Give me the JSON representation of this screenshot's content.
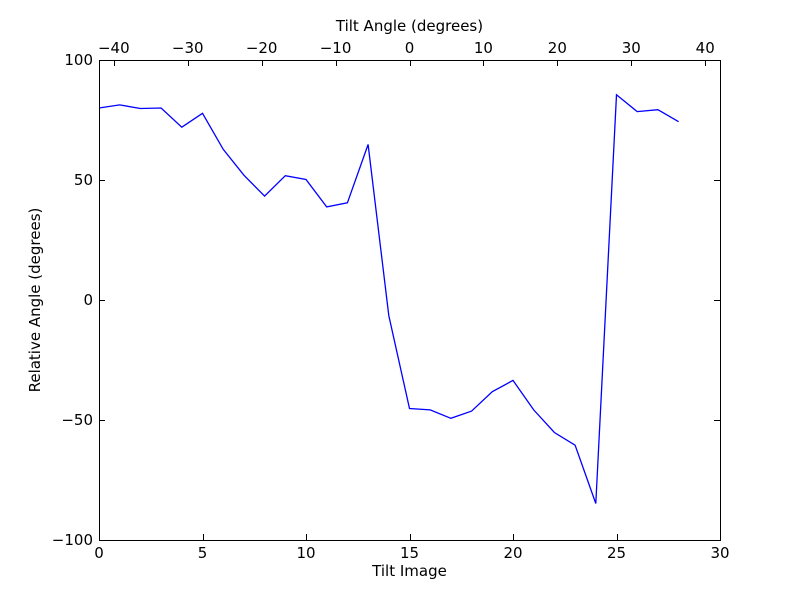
{
  "chart_data": {
    "type": "line",
    "title": "",
    "xlabel": "Tilt Image",
    "ylabel": "Relative Angle (degrees)",
    "top_xlabel": "Tilt Angle (degrees)",
    "xlim": [
      0,
      30
    ],
    "ylim": [
      -100,
      100
    ],
    "top_xlim": [
      -42,
      42
    ],
    "x_ticks": [
      {
        "value": 0,
        "label": "0"
      },
      {
        "value": 5,
        "label": "5"
      },
      {
        "value": 10,
        "label": "10"
      },
      {
        "value": 15,
        "label": "15"
      },
      {
        "value": 20,
        "label": "20"
      },
      {
        "value": 25,
        "label": "25"
      },
      {
        "value": 30,
        "label": "30"
      }
    ],
    "y_ticks": [
      {
        "value": 100,
        "label": "100"
      },
      {
        "value": 50,
        "label": "50"
      },
      {
        "value": 0,
        "label": "0"
      },
      {
        "value": -50,
        "label": "−50"
      },
      {
        "value": -100,
        "label": "−100"
      }
    ],
    "top_x_ticks": [
      {
        "value": -40,
        "label": "−40"
      },
      {
        "value": -30,
        "label": "−30"
      },
      {
        "value": -20,
        "label": "−20"
      },
      {
        "value": -10,
        "label": "−10"
      },
      {
        "value": 0,
        "label": "0"
      },
      {
        "value": 10,
        "label": "10"
      },
      {
        "value": 20,
        "label": "20"
      },
      {
        "value": 30,
        "label": "30"
      },
      {
        "value": 40,
        "label": "40"
      }
    ],
    "grid": false,
    "series": [
      {
        "color": "#0000ff",
        "x": [
          0,
          1,
          2,
          3,
          4,
          5,
          6,
          7,
          8,
          9,
          10,
          11,
          12,
          13,
          14,
          15,
          16,
          17,
          18,
          19,
          20,
          21,
          22,
          23,
          24,
          25,
          26,
          27,
          28
        ],
        "y": [
          80,
          81.3,
          79.8,
          80,
          72,
          77.8,
          62.8,
          52,
          43.3,
          51.8,
          50.2,
          38.8,
          40.5,
          64.8,
          -6.5,
          -45.2,
          -45.8,
          -49.3,
          -46.3,
          -38.2,
          -33.5,
          -45.8,
          -55.2,
          -60.5,
          -84.8,
          85.5,
          78.5,
          79.3,
          74.3
        ]
      }
    ]
  }
}
